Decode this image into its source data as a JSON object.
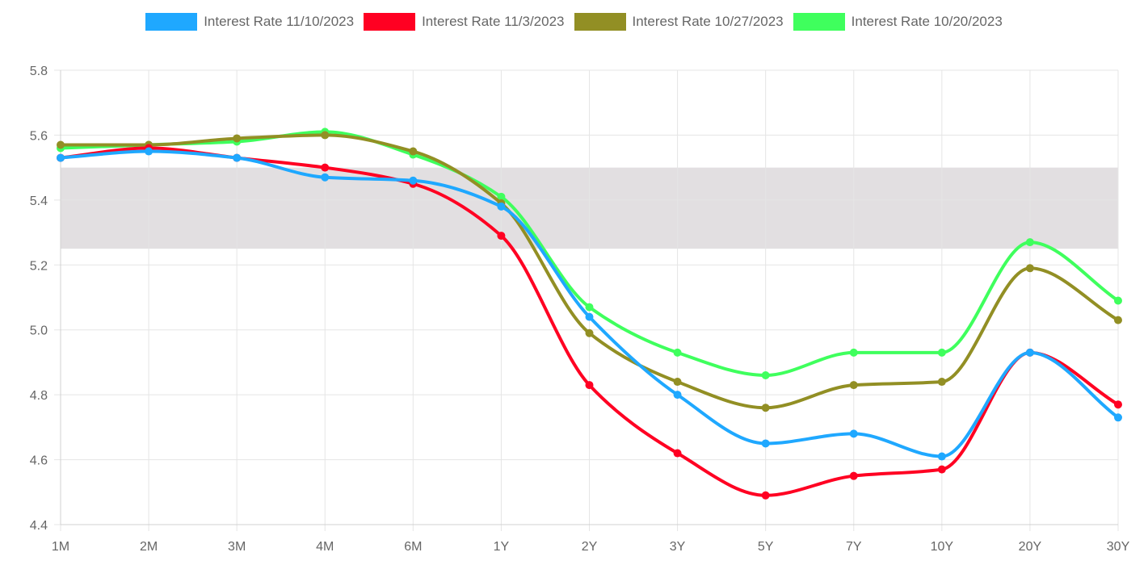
{
  "chart_data": {
    "type": "line",
    "categories": [
      "1M",
      "2M",
      "3M",
      "4M",
      "6M",
      "1Y",
      "2Y",
      "3Y",
      "5Y",
      "7Y",
      "10Y",
      "20Y",
      "30Y"
    ],
    "ylim": [
      4.4,
      5.8
    ],
    "yticks": [
      "5.8",
      "5.6",
      "5.4",
      "5.2",
      "5.0",
      "4.8",
      "4.6",
      "4.4"
    ],
    "ytick_values": [
      5.8,
      5.6,
      5.4,
      5.2,
      5.0,
      4.8,
      4.6,
      4.4
    ],
    "grid": true,
    "legend_position": "top-center",
    "shaded_band": {
      "from": 5.25,
      "to": 5.5,
      "color": "#e2dfe1"
    },
    "series": [
      {
        "name": "Interest Rate 11/10/2023",
        "color": "#1fa8ff",
        "values": [
          5.53,
          5.55,
          5.53,
          5.47,
          5.46,
          5.38,
          5.04,
          4.8,
          4.65,
          4.68,
          4.61,
          4.93,
          4.73
        ]
      },
      {
        "name": "Interest Rate 11/3/2023",
        "color": "#ff0022",
        "values": [
          5.53,
          5.56,
          5.53,
          5.5,
          5.45,
          5.29,
          4.83,
          4.62,
          4.49,
          4.55,
          4.57,
          4.93,
          4.77
        ]
      },
      {
        "name": "Interest Rate 10/27/2023",
        "color": "#928f24",
        "values": [
          5.57,
          5.57,
          5.59,
          5.6,
          5.55,
          5.39,
          4.99,
          4.84,
          4.76,
          4.83,
          4.84,
          5.19,
          5.03
        ]
      },
      {
        "name": "Interest Rate 10/20/2023",
        "color": "#3fff5d",
        "values": [
          5.56,
          5.57,
          5.58,
          5.61,
          5.54,
          5.41,
          5.07,
          4.93,
          4.86,
          4.93,
          4.93,
          5.27,
          5.09
        ]
      }
    ]
  }
}
